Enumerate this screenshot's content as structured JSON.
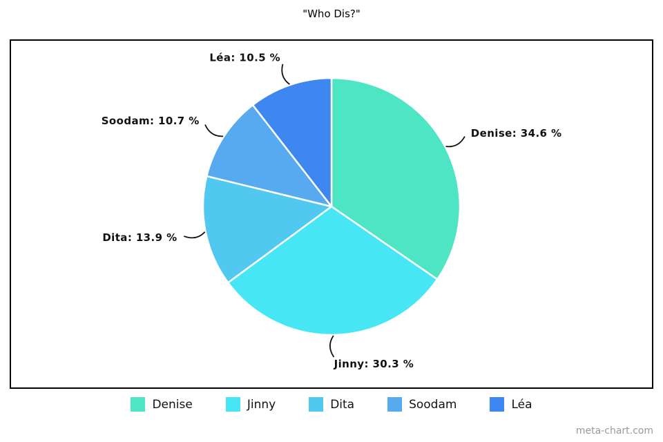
{
  "title": "\"Who Dis?\"",
  "watermark": "meta-chart.com",
  "chart_data": {
    "type": "pie",
    "title": "\"Who Dis?\"",
    "categories": [
      "Denise",
      "Jinny",
      "Dita",
      "Soodam",
      "Léa"
    ],
    "values": [
      34.6,
      30.3,
      13.9,
      10.7,
      10.5
    ],
    "unit": "%",
    "colors": [
      "#4de5c3",
      "#46e6f5",
      "#50c8f0",
      "#57aaef",
      "#3e86f0"
    ],
    "slice_labels": [
      "Denise: 34.6 %",
      "Jinny: 30.3 %",
      "Dita: 13.9 %",
      "Soodam: 10.7 %",
      "Léa: 10.5 %"
    ],
    "legend_position": "bottom",
    "start_angle_deg": 0,
    "direction": "clockwise",
    "slice_border_color": "#ffffff",
    "leader_line_color": "#111111"
  }
}
